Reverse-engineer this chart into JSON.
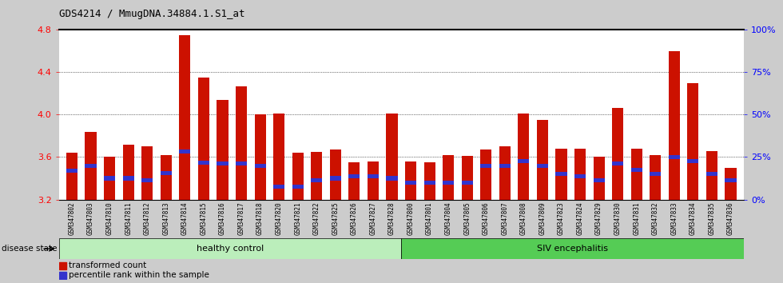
{
  "title": "GDS4214 / MmugDNA.34884.1.S1_at",
  "samples": [
    "GSM347802",
    "GSM347803",
    "GSM347810",
    "GSM347811",
    "GSM347812",
    "GSM347813",
    "GSM347814",
    "GSM347815",
    "GSM347816",
    "GSM347817",
    "GSM347818",
    "GSM347820",
    "GSM347821",
    "GSM347822",
    "GSM347825",
    "GSM347826",
    "GSM347827",
    "GSM347828",
    "GSM347800",
    "GSM347801",
    "GSM347804",
    "GSM347805",
    "GSM347806",
    "GSM347807",
    "GSM347808",
    "GSM347809",
    "GSM347823",
    "GSM347824",
    "GSM347829",
    "GSM347830",
    "GSM347831",
    "GSM347832",
    "GSM347833",
    "GSM347834",
    "GSM347835",
    "GSM347836"
  ],
  "bar_values": [
    3.64,
    3.84,
    3.6,
    3.72,
    3.7,
    3.62,
    4.75,
    4.35,
    4.14,
    4.27,
    4.0,
    4.01,
    3.64,
    3.65,
    3.67,
    3.55,
    3.56,
    4.01,
    3.56,
    3.55,
    3.62,
    3.61,
    3.67,
    3.7,
    4.01,
    3.95,
    3.68,
    3.68,
    3.6,
    4.06,
    3.68,
    3.62,
    4.6,
    4.3,
    3.66,
    3.5
  ],
  "percentile_values": [
    3.47,
    3.52,
    3.4,
    3.4,
    3.38,
    3.45,
    3.65,
    3.55,
    3.54,
    3.54,
    3.52,
    3.32,
    3.32,
    3.38,
    3.4,
    3.42,
    3.42,
    3.4,
    3.36,
    3.36,
    3.36,
    3.36,
    3.52,
    3.52,
    3.56,
    3.52,
    3.44,
    3.42,
    3.38,
    3.54,
    3.48,
    3.44,
    3.6,
    3.56,
    3.44,
    3.38
  ],
  "healthy_control_count": 18,
  "siv_encephalitis_count": 18,
  "bar_color": "#cc1100",
  "percentile_color": "#3333cc",
  "y_min": 3.2,
  "y_max": 4.8,
  "y_ticks": [
    3.2,
    3.6,
    4.0,
    4.4,
    4.8
  ],
  "right_y_ticks": [
    0,
    25,
    50,
    75,
    100
  ],
  "right_y_tick_labels": [
    "0%",
    "25%",
    "50%",
    "75%",
    "100%"
  ],
  "healthy_color": "#bbeebb",
  "siv_color": "#55cc55",
  "disease_state_label": "disease state",
  "legend_entries": [
    "transformed count",
    "percentile rank within the sample"
  ],
  "background_color": "#cccccc",
  "xtick_bg_color": "#cccccc",
  "plot_bg_color": "#ffffff"
}
